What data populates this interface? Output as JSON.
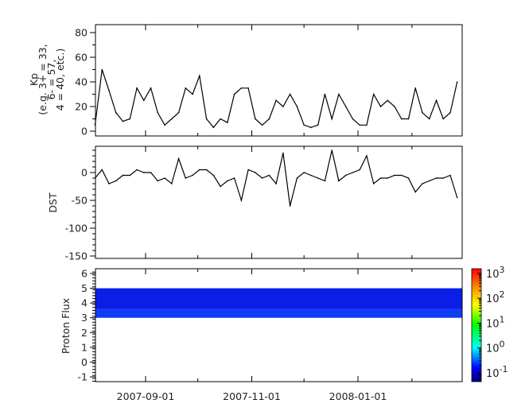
{
  "chart_data": [
    {
      "type": "line",
      "ylabel_lines": [
        "Kp",
        "(e.g. 3+ = 33,",
        "6- = 57,",
        "4 = 40, etc.)"
      ],
      "ylim": [
        -4,
        86
      ],
      "yticks": [
        "0",
        "20",
        "40",
        "60",
        "80"
      ],
      "x": [
        "2007-08-03",
        "2007-08-07",
        "2007-08-11",
        "2007-08-15",
        "2007-08-19",
        "2007-08-23",
        "2007-08-27",
        "2007-08-31",
        "2007-09-04",
        "2007-09-08",
        "2007-09-12",
        "2007-09-16",
        "2007-09-20",
        "2007-09-24",
        "2007-09-28",
        "2007-10-02",
        "2007-10-06",
        "2007-10-10",
        "2007-10-14",
        "2007-10-18",
        "2007-10-22",
        "2007-10-26",
        "2007-10-30",
        "2007-11-03",
        "2007-11-07",
        "2007-11-11",
        "2007-11-15",
        "2007-11-19",
        "2007-11-23",
        "2007-11-27",
        "2007-12-01",
        "2007-12-05",
        "2007-12-09",
        "2007-12-13",
        "2007-12-17",
        "2007-12-21",
        "2007-12-25",
        "2007-12-29",
        "2008-01-02",
        "2008-01-06",
        "2008-01-10",
        "2008-01-14",
        "2008-01-18",
        "2008-01-22",
        "2008-01-26",
        "2008-01-30",
        "2008-02-03",
        "2008-02-07",
        "2008-02-11",
        "2008-02-15",
        "2008-02-19",
        "2008-02-23",
        "2008-02-27"
      ],
      "values": [
        5,
        50,
        33,
        15,
        8,
        10,
        35,
        25,
        35,
        15,
        5,
        10,
        15,
        35,
        30,
        45,
        10,
        3,
        10,
        7,
        30,
        35,
        35,
        10,
        5,
        10,
        25,
        20,
        30,
        20,
        5,
        3,
        5,
        30,
        10,
        30,
        20,
        10,
        5,
        5,
        30,
        20,
        25,
        20,
        10,
        10,
        35,
        15,
        10,
        25,
        10,
        15,
        40
      ]
    },
    {
      "type": "line",
      "ylabel": "DST",
      "ylim": [
        -154,
        47
      ],
      "yticks": [
        "0",
        "-50",
        "-100",
        "-150"
      ],
      "values": [
        -10,
        5,
        -20,
        -15,
        -5,
        -5,
        5,
        0,
        0,
        -15,
        -10,
        -20,
        25,
        -10,
        -5,
        5,
        5,
        -5,
        -25,
        -15,
        -10,
        -50,
        5,
        0,
        -10,
        -5,
        -20,
        35,
        -60,
        -10,
        0,
        -5,
        -10,
        -15,
        40,
        -15,
        -5,
        0,
        5,
        30,
        -20,
        -10,
        -10,
        -5,
        -5,
        -10,
        -35,
        -20,
        -15,
        -10,
        -10,
        -5,
        -45
      ]
    },
    {
      "type": "heatmap",
      "ylabel": "Proton Flux",
      "ylim": [
        -1.3,
        6.3
      ],
      "yticks": [
        "-1",
        "0",
        "1",
        "2",
        "3",
        "4",
        "5",
        "6"
      ],
      "bands": [
        {
          "y_range": [
            3.6,
            5
          ],
          "value": 0.1
        },
        {
          "y_range": [
            3,
            3.6
          ],
          "value": 0.3
        }
      ],
      "colorbar": {
        "scale": "log",
        "range": [
          0.045,
          1500
        ],
        "ticks": [
          {
            "base": "10",
            "exp": "3"
          },
          {
            "base": "10",
            "exp": "2"
          },
          {
            "base": "10",
            "exp": "1"
          },
          {
            "base": "10",
            "exp": "0"
          },
          {
            "base": "10",
            "exp": "-1"
          }
        ],
        "colormap": "jet"
      }
    }
  ],
  "x_axis": {
    "range": [
      "2007-08-03",
      "2008-03-01"
    ],
    "tick_labels": [
      "2007-09-01",
      "2007-11-01",
      "2008-01-01"
    ]
  }
}
